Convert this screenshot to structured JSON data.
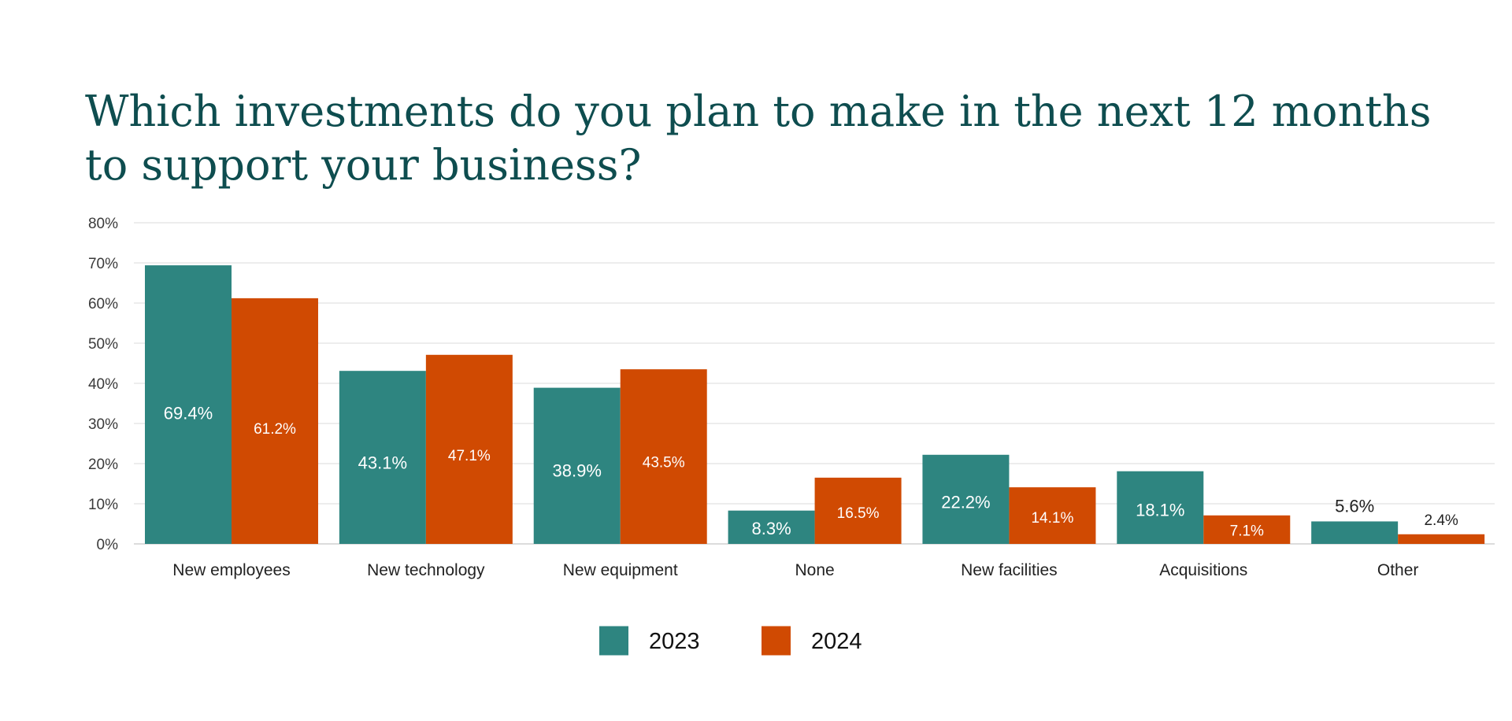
{
  "header": {
    "title_line1": "Which investments do you plan to make in the next 12 months",
    "title_line2": "to support your business?"
  },
  "chart_data": {
    "type": "bar",
    "title": "Which investments do you plan to make in the next 12 months to support your business?",
    "xlabel": "",
    "ylabel": "",
    "ylim": [
      0,
      80
    ],
    "yticks": [
      0,
      10,
      20,
      30,
      40,
      50,
      60,
      70,
      80
    ],
    "ytick_labels": [
      "0%",
      "10%",
      "20%",
      "30%",
      "40%",
      "50%",
      "60%",
      "70%",
      "80%"
    ],
    "grid": true,
    "legend_position": "bottom-center",
    "categories": [
      "New employees",
      "New technology",
      "New equipment",
      "None",
      "New facilities",
      "Acquisitions",
      "Other"
    ],
    "series": [
      {
        "name": "2023",
        "color": "#2e8580",
        "values": [
          69.4,
          43.1,
          38.9,
          8.3,
          22.2,
          18.1,
          5.6
        ],
        "labels": [
          "69.4%",
          "43.1%",
          "38.9%",
          "8.3%",
          "22.2%",
          "18.1%",
          "5.6%"
        ]
      },
      {
        "name": "2024",
        "color": "#d04a02",
        "values": [
          61.2,
          47.1,
          43.5,
          16.5,
          14.1,
          7.1,
          2.4
        ],
        "labels": [
          "61.2%",
          "47.1%",
          "43.5%",
          "16.5%",
          "14.1%",
          "7.1%",
          "2.4%"
        ]
      }
    ]
  }
}
